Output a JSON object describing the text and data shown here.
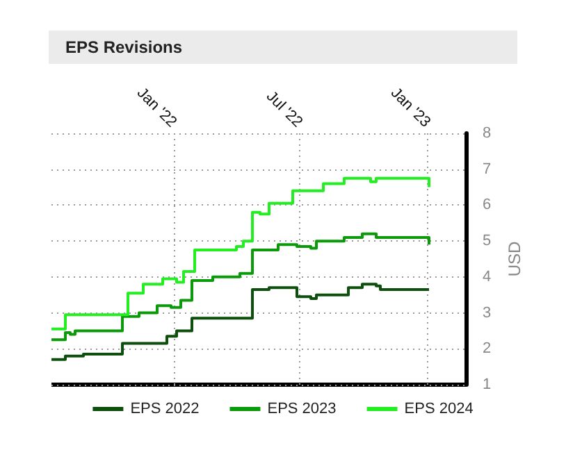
{
  "chart_data": {
    "type": "step",
    "title": "EPS Revisions",
    "ylabel": "USD",
    "xlim": [
      "2021-07-09",
      "2023-02-25"
    ],
    "xticks": [
      {
        "value": "2022-01-01",
        "label": "Jan '22"
      },
      {
        "value": "2022-07-01",
        "label": "Jul '22"
      },
      {
        "value": "2023-01-01",
        "label": "Jan '23"
      }
    ],
    "ylim": [
      1,
      8
    ],
    "yticks": [
      1,
      2,
      3,
      4,
      5,
      6,
      7,
      8
    ],
    "grid": true,
    "legend": "bottom",
    "marker": "none",
    "line_style": "solid",
    "series": [
      {
        "name": "EPS 2022",
        "color": "#0d4f0d",
        "x": [
          "2021-07-09",
          "2021-07-29",
          "2021-08-24",
          "2021-10-19",
          "2021-12-22",
          "2022-01-05",
          "2022-01-27",
          "2022-04-24",
          "2022-05-18",
          "2022-06-27",
          "2022-07-17",
          "2022-07-25",
          "2022-09-09",
          "2022-09-29",
          "2022-10-19",
          "2022-10-25",
          "2023-01-03"
        ],
        "values": [
          1.7,
          1.8,
          1.85,
          2.15,
          2.35,
          2.5,
          2.85,
          3.65,
          3.7,
          3.45,
          3.4,
          3.5,
          3.7,
          3.8,
          3.75,
          3.65,
          3.65
        ]
      },
      {
        "name": "EPS 2023",
        "color": "#0a9a0a",
        "x": [
          "2021-07-09",
          "2021-07-29",
          "2021-08-05",
          "2021-08-12",
          "2021-10-19",
          "2021-11-12",
          "2021-12-08",
          "2021-12-28",
          "2022-01-11",
          "2022-01-27",
          "2022-02-26",
          "2022-04-06",
          "2022-04-24",
          "2022-05-31",
          "2022-06-27",
          "2022-07-17",
          "2022-07-25",
          "2022-09-03",
          "2022-09-29",
          "2022-10-19",
          "2022-11-29",
          "2023-01-03"
        ],
        "values": [
          2.25,
          2.45,
          2.4,
          2.5,
          2.9,
          3.0,
          3.2,
          3.15,
          3.35,
          3.9,
          4.0,
          4.1,
          4.75,
          4.9,
          4.85,
          4.8,
          5.0,
          5.1,
          5.2,
          5.1,
          5.1,
          4.9
        ]
      },
      {
        "name": "EPS 2024",
        "color": "#22ee22",
        "x": [
          "2021-07-09",
          "2021-07-29",
          "2021-10-27",
          "2021-11-18",
          "2021-12-16",
          "2022-01-05",
          "2022-01-15",
          "2022-01-31",
          "2022-04-01",
          "2022-04-11",
          "2022-04-24",
          "2022-05-05",
          "2022-05-18",
          "2022-06-21",
          "2022-07-17",
          "2022-08-04",
          "2022-09-03",
          "2022-10-11",
          "2022-10-19",
          "2022-12-14",
          "2023-01-03"
        ],
        "values": [
          2.55,
          2.95,
          3.55,
          3.8,
          3.95,
          3.85,
          4.15,
          4.75,
          4.85,
          5.0,
          5.8,
          5.75,
          6.05,
          6.4,
          6.4,
          6.6,
          6.75,
          6.65,
          6.75,
          6.75,
          6.5
        ]
      }
    ]
  }
}
